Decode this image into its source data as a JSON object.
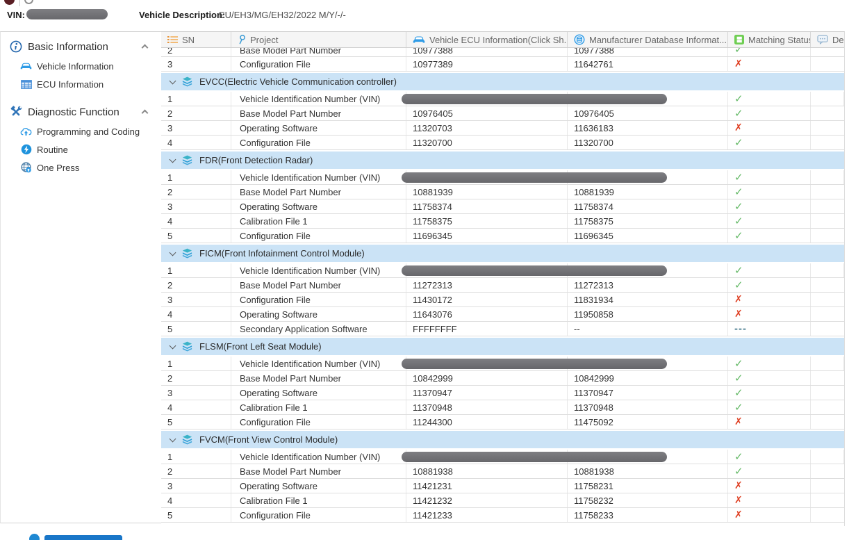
{
  "topbar": {
    "vin_label": "VIN:",
    "vehicle_description_label": "Vehicle Description:",
    "vehicle_description_value": "EU/EH3/MG/EH32/2022 M/Y/-/-"
  },
  "sidebar": {
    "sections": [
      {
        "label": "Basic Information",
        "icon": "info-icon",
        "items": [
          {
            "label": "Vehicle Information",
            "icon": "car-icon"
          },
          {
            "label": "ECU Information",
            "icon": "grid-icon"
          }
        ]
      },
      {
        "label": "Diagnostic Function",
        "icon": "tools-icon",
        "items": [
          {
            "label": "Programming and Coding",
            "icon": "cloud-upload-icon"
          },
          {
            "label": "Routine",
            "icon": "lightning-icon"
          },
          {
            "label": "One Press",
            "icon": "globe-icon"
          }
        ]
      }
    ]
  },
  "table": {
    "columns": [
      {
        "label": "SN",
        "icon": "list-icon"
      },
      {
        "label": "Project",
        "icon": "pin-icon"
      },
      {
        "label": "Vehicle ECU Information(Click Sh...",
        "icon": "car-icon"
      },
      {
        "label": "Manufacturer Database Informat...",
        "icon": "cloud-database-icon"
      },
      {
        "label": "Matching Status",
        "icon": "match-icon"
      },
      {
        "label": "Desc",
        "icon": "comment-icon"
      }
    ],
    "clipped_rows": [
      {
        "sn": "2",
        "project": "Base Model Part Number",
        "ecu": "10977388",
        "db": "10977388",
        "status": "check"
      },
      {
        "sn": "3",
        "project": "Configuration File",
        "ecu": "10977389",
        "db": "11642761",
        "status": "cross"
      }
    ],
    "sections": [
      {
        "title": "EVCC(Electric Vehicle Communication controller)",
        "rows": [
          {
            "sn": "1",
            "project": "Vehicle Identification Number (VIN)",
            "ecu": "",
            "db": "",
            "status": "check",
            "redacted": true
          },
          {
            "sn": "2",
            "project": "Base Model Part Number",
            "ecu": "10976405",
            "db": "10976405",
            "status": "check"
          },
          {
            "sn": "3",
            "project": "Operating Software",
            "ecu": "11320703",
            "db": "11636183",
            "status": "cross"
          },
          {
            "sn": "4",
            "project": "Configuration File",
            "ecu": "11320700",
            "db": "11320700",
            "status": "check"
          }
        ]
      },
      {
        "title": "FDR(Front Detection Radar)",
        "rows": [
          {
            "sn": "1",
            "project": "Vehicle Identification Number (VIN)",
            "ecu": "",
            "db": "",
            "status": "check",
            "redacted": true
          },
          {
            "sn": "2",
            "project": "Base Model Part Number",
            "ecu": "10881939",
            "db": "10881939",
            "status": "check"
          },
          {
            "sn": "3",
            "project": "Operating Software",
            "ecu": "11758374",
            "db": "11758374",
            "status": "check"
          },
          {
            "sn": "4",
            "project": "Calibration File 1",
            "ecu": "11758375",
            "db": "11758375",
            "status": "check"
          },
          {
            "sn": "5",
            "project": "Configuration File",
            "ecu": "11696345",
            "db": "11696345",
            "status": "check"
          }
        ]
      },
      {
        "title": "FICM(Front Infotainment Control Module)",
        "rows": [
          {
            "sn": "1",
            "project": "Vehicle Identification Number (VIN)",
            "ecu": "",
            "db": "",
            "status": "check",
            "redacted": true
          },
          {
            "sn": "2",
            "project": "Base Model Part Number",
            "ecu": "11272313",
            "db": "11272313",
            "status": "check"
          },
          {
            "sn": "3",
            "project": "Configuration File",
            "ecu": "11430172",
            "db": "11831934",
            "status": "cross"
          },
          {
            "sn": "4",
            "project": "Operating Software",
            "ecu": "11643076",
            "db": "11950858",
            "status": "cross"
          },
          {
            "sn": "5",
            "project": "Secondary Application Software",
            "ecu": "FFFFFFFF",
            "db": "--",
            "status": "dash"
          }
        ]
      },
      {
        "title": "FLSM(Front Left Seat Module)",
        "rows": [
          {
            "sn": "1",
            "project": "Vehicle Identification Number (VIN)",
            "ecu": "",
            "db": "",
            "status": "check",
            "redacted": true
          },
          {
            "sn": "2",
            "project": "Base Model Part Number",
            "ecu": "10842999",
            "db": "10842999",
            "status": "check"
          },
          {
            "sn": "3",
            "project": "Operating Software",
            "ecu": "11370947",
            "db": "11370947",
            "status": "check"
          },
          {
            "sn": "4",
            "project": "Calibration File 1",
            "ecu": "11370948",
            "db": "11370948",
            "status": "check"
          },
          {
            "sn": "5",
            "project": "Configuration File",
            "ecu": "11244300",
            "db": "11475092",
            "status": "cross"
          }
        ]
      },
      {
        "title": "FVCM(Front View Control Module)",
        "rows": [
          {
            "sn": "1",
            "project": "Vehicle Identification Number (VIN)",
            "ecu": "",
            "db": "",
            "status": "check",
            "redacted": true
          },
          {
            "sn": "2",
            "project": "Base Model Part Number",
            "ecu": "10881938",
            "db": "10881938",
            "status": "check"
          },
          {
            "sn": "3",
            "project": "Operating Software",
            "ecu": "11421231",
            "db": "11758231",
            "status": "cross"
          },
          {
            "sn": "4",
            "project": "Calibration File 1",
            "ecu": "11421232",
            "db": "11758232",
            "status": "cross"
          },
          {
            "sn": "5",
            "project": "Configuration File",
            "ecu": "11421233",
            "db": "11758233",
            "status": "cross"
          }
        ]
      }
    ]
  },
  "status_glyphs": {
    "check": "✓",
    "cross": "✗",
    "dash": "---"
  },
  "status_colors": {
    "check": "#64b966",
    "cross": "#df4124",
    "dash": "#44798c"
  },
  "accent_colors": {
    "banner_blue": "#cbe3f6",
    "icon_blue": "#2e9be6",
    "match_green": "#6fce53",
    "sn_orange": "#f0a33f"
  }
}
